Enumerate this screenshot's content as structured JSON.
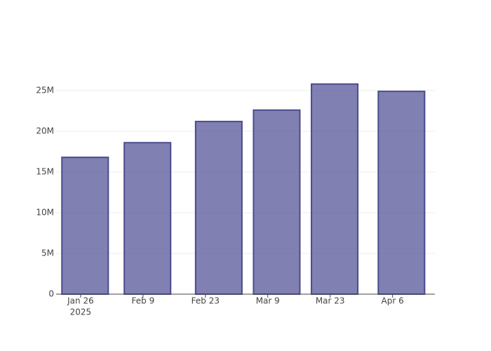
{
  "chart_data": {
    "type": "bar",
    "x": [
      "2025-01-27",
      "2025-02-10",
      "2025-02-26",
      "2025-03-11",
      "2025-03-24",
      "2025-04-08"
    ],
    "values": [
      16800000,
      18600000,
      21200000,
      22600000,
      25800000,
      24900000
    ],
    "color": "#555599",
    "line_color": "#4b4b8c",
    "xlim": [
      "2025-01-20T12:00",
      "2025-04-15T12:00"
    ],
    "xticks": [
      {
        "value": "2025-01-26",
        "label": "Jan 26",
        "year": "2025"
      },
      {
        "value": "2025-02-09",
        "label": "Feb 9"
      },
      {
        "value": "2025-02-23",
        "label": "Feb 23"
      },
      {
        "value": "2025-03-09",
        "label": "Mar 9"
      },
      {
        "value": "2025-03-23",
        "label": "Mar 23"
      },
      {
        "value": "2025-04-06",
        "label": "Apr 6"
      }
    ],
    "ylim": [
      0,
      27500000
    ],
    "yticks": [
      0,
      {
        "value": 5000000,
        "label": "5M"
      },
      {
        "value": 10000000,
        "label": "10M"
      },
      {
        "value": 15000000,
        "label": "15M"
      },
      {
        "value": 20000000,
        "label": "20M"
      },
      {
        "value": 25000000,
        "label": "25M"
      }
    ],
    "grid": true
  }
}
